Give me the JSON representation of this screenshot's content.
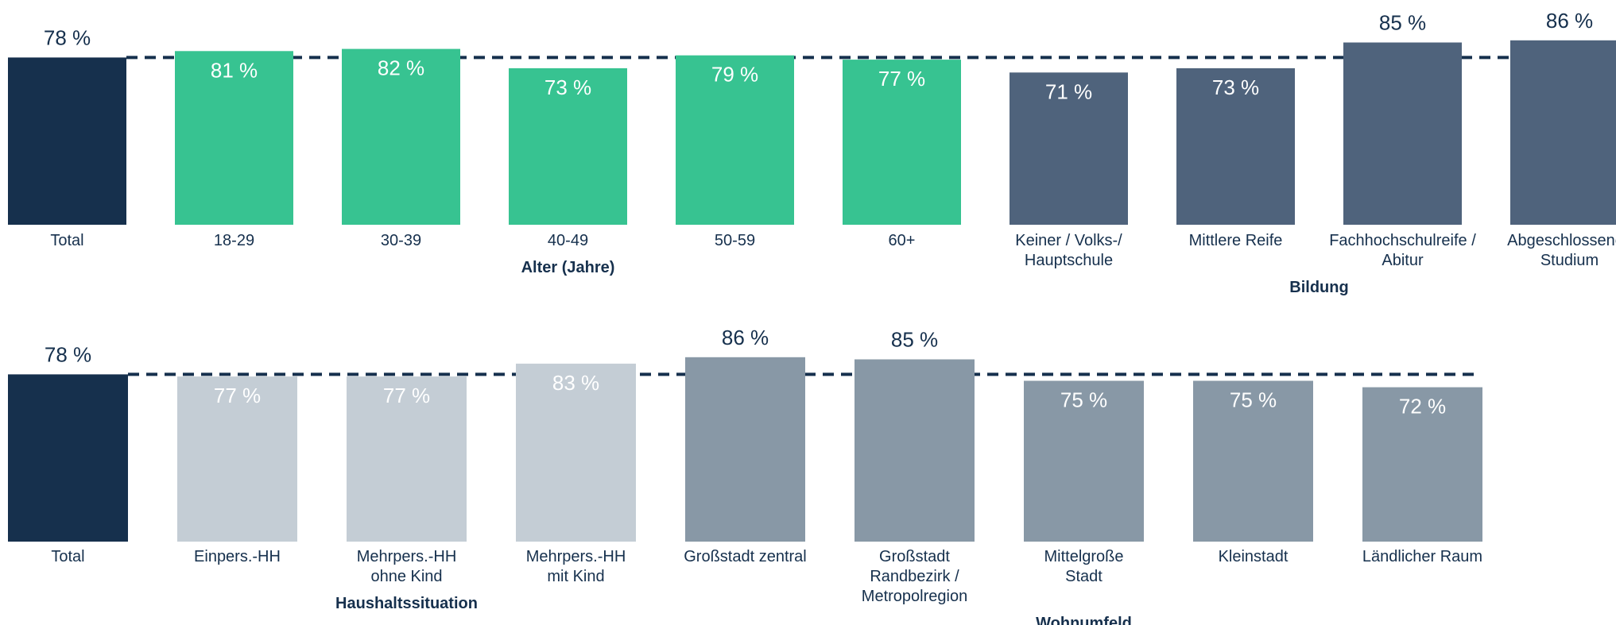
{
  "chart_data": [
    {
      "type": "bar",
      "total": {
        "category": "Total",
        "value": 78,
        "value_label": "78 %",
        "color": "#16304d"
      },
      "groups": [
        {
          "label": "Alter (Jahre)",
          "color": "#37c391",
          "categories": [
            "18-29",
            "30-39",
            "40-49",
            "50-59",
            "60+"
          ],
          "values": [
            81,
            82,
            73,
            79,
            77
          ],
          "value_labels": [
            "81 %",
            "82 %",
            "73 %",
            "79 %",
            "77 %"
          ]
        },
        {
          "label": "Bildung",
          "color": "#4f637c",
          "categories": [
            "Keiner / Volks-/\nHauptschule",
            "Mittlere Reife",
            "Fachhochschulreife /\nAbitur",
            "Abgeschlossenes\nStudium"
          ],
          "values": [
            71,
            73,
            85,
            86
          ],
          "value_labels": [
            "71 %",
            "73 %",
            "85 %",
            "86 %"
          ]
        }
      ]
    },
    {
      "type": "bar",
      "total": {
        "category": "Total",
        "value": 78,
        "value_label": "78 %",
        "color": "#16304d"
      },
      "groups": [
        {
          "label": "Haushaltssituation",
          "color": "#c4cdd5",
          "categories": [
            "Einpers.-HH",
            "Mehrpers.-HH\nohne Kind",
            "Mehrpers.-HH\nmit Kind"
          ],
          "values": [
            77,
            77,
            83
          ],
          "value_labels": [
            "77 %",
            "77 %",
            "83 %"
          ]
        },
        {
          "label": "Wohnumfeld",
          "color": "#8898a6",
          "categories": [
            "Großstadt zentral",
            "Großstadt\nRandbezirk /\nMetropolregion",
            "Mittelgroße\nStadt",
            "Kleinstadt",
            "Ländlicher Raum"
          ],
          "values": [
            86,
            85,
            75,
            75,
            72
          ],
          "value_labels": [
            "86 %",
            "85 %",
            "75 %",
            "75 %",
            "72 %"
          ]
        }
      ]
    }
  ]
}
